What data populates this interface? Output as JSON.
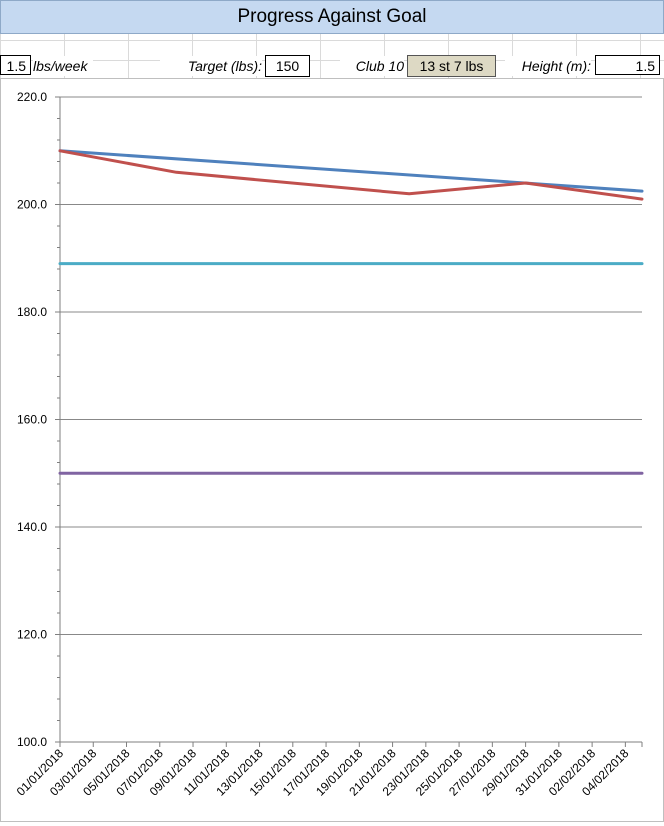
{
  "header": {
    "title": "Progress Against Goal"
  },
  "settings": {
    "rate_value": "1.5",
    "rate_unit": "lbs/week",
    "target_label": "Target (lbs):",
    "target_value": "150",
    "club_label": "Club 10",
    "club_value": "13 st  7 lbs",
    "height_label": "Height (m):",
    "height_value": "1.5"
  },
  "chart_data": {
    "type": "line",
    "categories": [
      "01/01/2018",
      "03/01/2018",
      "05/01/2018",
      "07/01/2018",
      "09/01/2018",
      "11/01/2018",
      "13/01/2018",
      "15/01/2018",
      "17/01/2018",
      "19/01/2018",
      "21/01/2018",
      "23/01/2018",
      "25/01/2018",
      "27/01/2018",
      "29/01/2018",
      "31/01/2018",
      "02/02/2018",
      "04/02/2018"
    ],
    "x_start": "01/01/2018",
    "x_end": "05/02/2018",
    "ylim": [
      100,
      220
    ],
    "yticks": [
      "100.0",
      "120.0",
      "140.0",
      "160.0",
      "180.0",
      "200.0",
      "220.0"
    ],
    "grid": "horizontal",
    "series": [
      {
        "color": "#4f81bd",
        "x": [
          "01/01/2018",
          "05/02/2018"
        ],
        "values": [
          210.0,
          202.5
        ]
      },
      {
        "color": "#c0504d",
        "x": [
          "01/01/2018",
          "08/01/2018",
          "22/01/2018",
          "29/01/2018",
          "05/02/2018"
        ],
        "values": [
          210.0,
          206.0,
          202.0,
          204.0,
          201.0
        ]
      },
      {
        "color": "#4bacc6",
        "x": [
          "01/01/2018",
          "05/02/2018"
        ],
        "values": [
          189.0,
          189.0
        ]
      },
      {
        "color": "#8064a2",
        "x": [
          "01/01/2018",
          "05/02/2018"
        ],
        "values": [
          150.0,
          150.0
        ]
      }
    ]
  }
}
